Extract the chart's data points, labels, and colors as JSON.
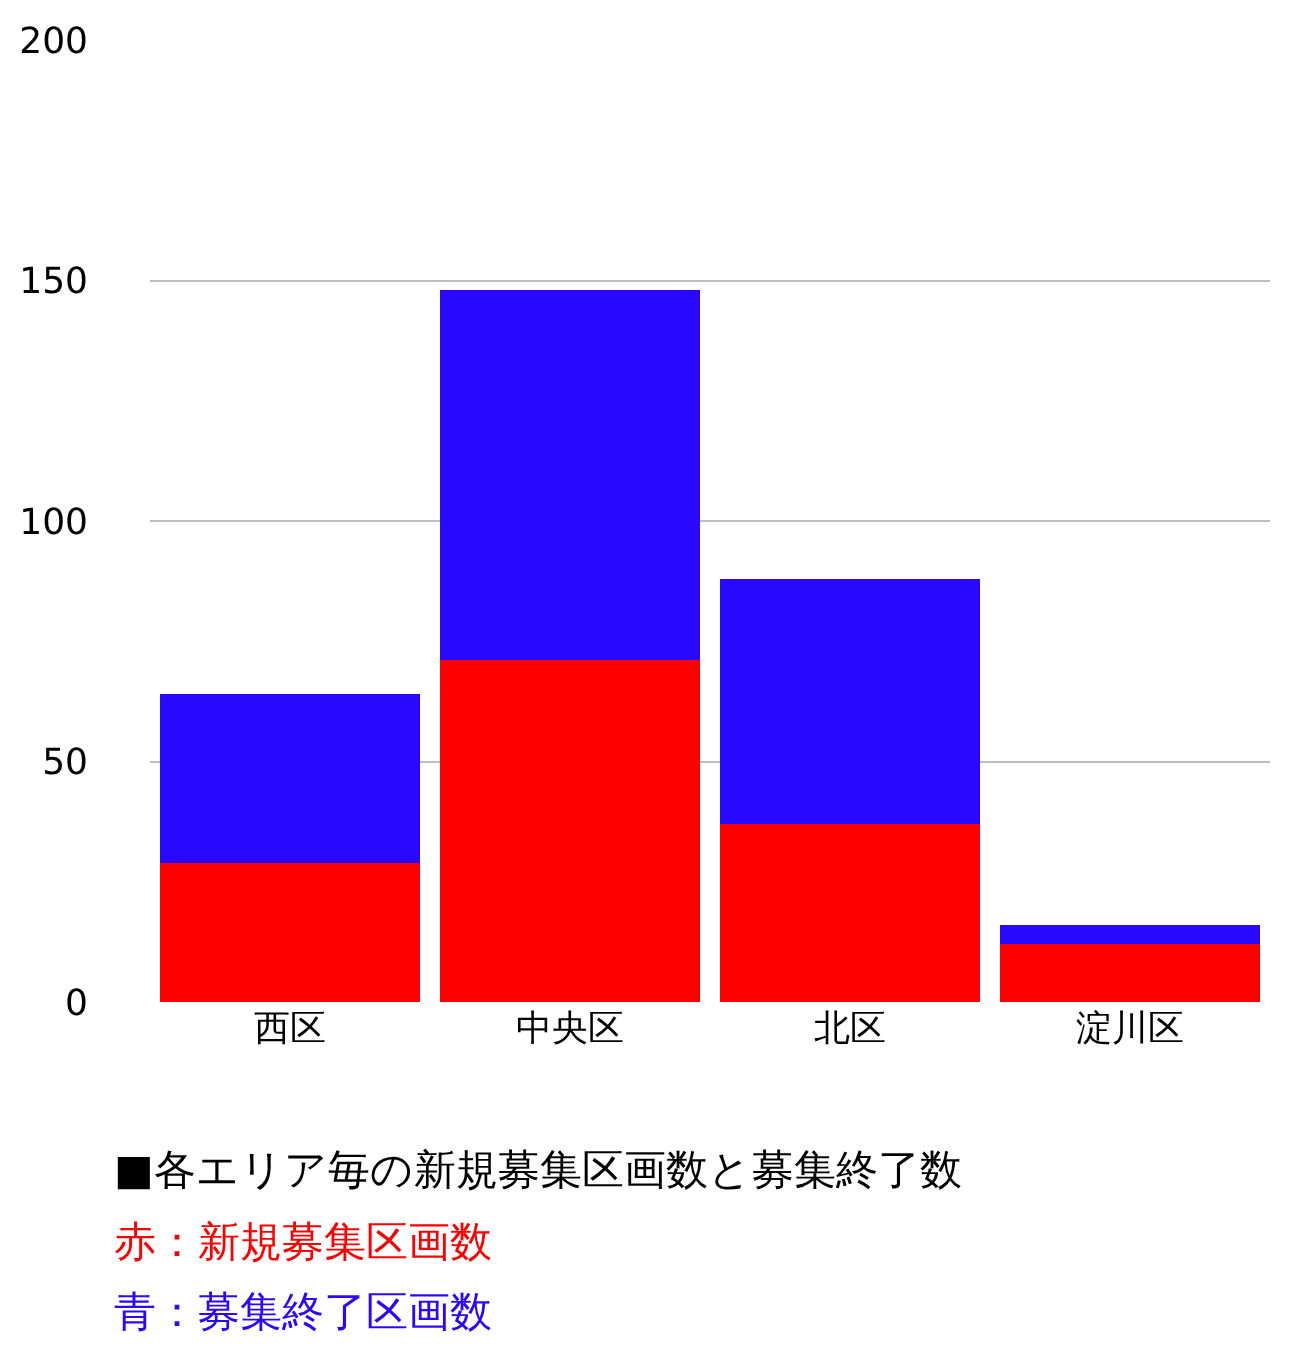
{
  "chart_data": {
    "type": "bar",
    "stacked": true,
    "categories": [
      "西区",
      "中央区",
      "北区",
      "淀川区"
    ],
    "series": [
      {
        "color": "#ff0000",
        "values": [
          29,
          71,
          37,
          12
        ]
      },
      {
        "color": "#2a07ff",
        "values": [
          35,
          77,
          51,
          4
        ]
      }
    ],
    "ylim": [
      0,
      200
    ],
    "yticks": [
      0,
      50,
      100,
      150,
      200
    ],
    "grid": "y",
    "legend": false,
    "annotations": [
      "■各エリア毎の新規募集区画数と募集終了数",
      "赤：新規募集区画数",
      "青：募集終了区画数"
    ]
  }
}
